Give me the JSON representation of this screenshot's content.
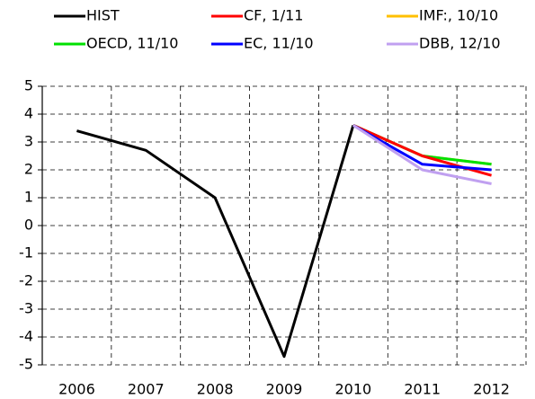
{
  "chart_data": {
    "type": "line",
    "categories": [
      "2006",
      "2007",
      "2008",
      "2009",
      "2010",
      "2011",
      "2012"
    ],
    "series": [
      {
        "name": "HIST",
        "color": "#000000",
        "values": [
          3.4,
          2.7,
          1.0,
          -4.7,
          3.6,
          null,
          null
        ]
      },
      {
        "name": "CF, 1/11",
        "color": "#ff0000",
        "values": [
          null,
          null,
          null,
          null,
          3.6,
          2.5,
          1.8
        ]
      },
      {
        "name": "IMF:, 10/10",
        "color": "#ffc000",
        "values": [
          null,
          null,
          null,
          null,
          3.6,
          2.5,
          2.2
        ]
      },
      {
        "name": "OECD, 11/10",
        "color": "#00e000",
        "values": [
          null,
          null,
          null,
          null,
          3.6,
          2.5,
          2.2
        ]
      },
      {
        "name": "EC, 11/10",
        "color": "#0000ff",
        "values": [
          null,
          null,
          null,
          null,
          3.6,
          2.2,
          2.0
        ]
      },
      {
        "name": "DBB, 12/10",
        "color": "#c0a0f0",
        "values": [
          null,
          null,
          null,
          null,
          3.6,
          2.0,
          1.5
        ]
      }
    ],
    "ylim": [
      -5,
      5
    ],
    "yticks": [
      -5,
      -4,
      -3,
      -2,
      -1,
      0,
      1,
      2,
      3,
      4,
      5
    ],
    "grid": true
  }
}
